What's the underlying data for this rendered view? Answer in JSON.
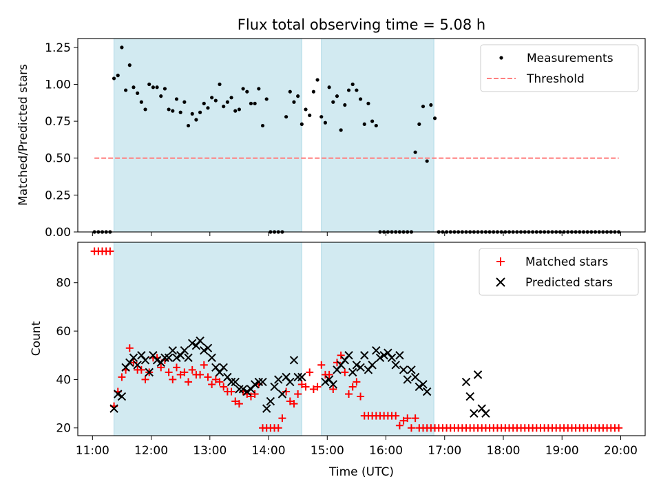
{
  "figure": {
    "title": "Flux total observing time = 5.08 h"
  },
  "chart_data": [
    {
      "type": "scatter",
      "ylabel": "Matched/Predicted stars",
      "xlabel": "",
      "xlim": [
        "10:45",
        "20:25"
      ],
      "ylim": [
        0,
        1.31
      ],
      "yticks": [
        "0.00",
        "0.25",
        "0.50",
        "0.75",
        "1.00",
        "1.25"
      ],
      "ytick_values": [
        0,
        0.25,
        0.5,
        0.75,
        1.0,
        1.25
      ],
      "shaded_intervals": [
        [
          "11:22",
          "14:34"
        ],
        [
          "14:54",
          "16:49"
        ]
      ],
      "shade_color": "#add8e6",
      "legend": {
        "position": "top-right",
        "entries": [
          "Measurements",
          "Threshold"
        ]
      },
      "series": [
        {
          "name": "Measurements",
          "kind": "points",
          "color": "#000000",
          "x": [
            "11:02",
            "11:06",
            "11:10",
            "11:14",
            "11:18",
            "11:22",
            "11:26",
            "11:30",
            "11:34",
            "11:38",
            "11:42",
            "11:46",
            "11:50",
            "11:54",
            "11:58",
            "12:02",
            "12:06",
            "12:10",
            "12:14",
            "12:18",
            "12:22",
            "12:26",
            "12:30",
            "12:34",
            "12:38",
            "12:42",
            "12:46",
            "12:50",
            "12:54",
            "12:58",
            "13:02",
            "13:06",
            "13:10",
            "13:14",
            "13:18",
            "13:22",
            "13:26",
            "13:30",
            "13:34",
            "13:38",
            "13:42",
            "13:46",
            "13:50",
            "13:54",
            "13:58",
            "14:02",
            "14:06",
            "14:10",
            "14:14",
            "14:18",
            "14:22",
            "14:26",
            "14:30",
            "14:34",
            "14:38",
            "14:42",
            "14:46",
            "14:50",
            "14:54",
            "14:58",
            "15:02",
            "15:06",
            "15:10",
            "15:14",
            "15:18",
            "15:22",
            "15:26",
            "15:30",
            "15:34",
            "15:38",
            "15:42",
            "15:46",
            "15:50",
            "15:54",
            "15:58",
            "16:02",
            "16:06",
            "16:10",
            "16:14",
            "16:18",
            "16:22",
            "16:26",
            "16:30",
            "16:34",
            "16:38",
            "16:42",
            "16:46",
            "16:50",
            "16:54",
            "16:58",
            "17:02",
            "17:06",
            "17:10",
            "17:14",
            "17:18",
            "17:22",
            "17:26",
            "17:30",
            "17:34",
            "17:38",
            "17:42",
            "17:46",
            "17:50",
            "17:54",
            "17:58",
            "18:02",
            "18:06",
            "18:10",
            "18:14",
            "18:18",
            "18:22",
            "18:26",
            "18:30",
            "18:34",
            "18:38",
            "18:42",
            "18:46",
            "18:50",
            "18:54",
            "18:58",
            "19:02",
            "19:06",
            "19:10",
            "19:14",
            "19:18",
            "19:22",
            "19:26",
            "19:30",
            "19:34",
            "19:38",
            "19:42",
            "19:46",
            "19:50",
            "19:54",
            "19:58"
          ],
          "y": [
            0,
            0,
            0,
            0,
            0,
            1.04,
            1.06,
            1.25,
            0.96,
            1.13,
            0.98,
            0.94,
            0.88,
            0.83,
            1.0,
            0.98,
            0.98,
            0.92,
            0.97,
            0.83,
            0.82,
            0.9,
            0.81,
            0.88,
            0.72,
            0.8,
            0.76,
            0.81,
            0.87,
            0.84,
            0.91,
            0.89,
            1.0,
            0.85,
            0.88,
            0.91,
            0.82,
            0.83,
            0.97,
            0.95,
            0.87,
            0.87,
            0.97,
            0.72,
            0.9,
            0,
            0,
            0,
            0,
            0.78,
            0.95,
            0.88,
            0.92,
            0.73,
            0.83,
            0.79,
            0.95,
            1.03,
            0.78,
            0.74,
            0.98,
            0.88,
            0.92,
            0.69,
            0.86,
            0.96,
            1.0,
            0.96,
            0.9,
            0.73,
            0.87,
            0.75,
            0.72,
            0,
            0,
            0,
            0,
            0,
            0,
            0,
            0,
            0,
            0.54,
            0.73,
            0.85,
            0.48,
            0.86,
            0.77,
            0,
            0,
            0,
            0,
            0,
            0,
            0,
            0,
            0,
            0,
            0,
            0,
            0,
            0,
            0,
            0,
            0,
            0,
            0,
            0,
            0,
            0,
            0,
            0,
            0,
            0,
            0,
            0,
            0,
            0,
            0,
            0,
            0,
            0,
            0,
            0,
            0,
            0,
            0,
            0,
            0,
            0,
            0,
            0,
            0,
            0,
            0
          ]
        },
        {
          "name": "Threshold",
          "kind": "dashed-line",
          "color": "#ff7f7f",
          "x": [
            "11:02",
            "19:58"
          ],
          "y": [
            0.5,
            0.5
          ]
        }
      ]
    },
    {
      "type": "scatter",
      "ylabel": "Count",
      "xlabel": "Time (UTC)",
      "xlim": [
        "10:45",
        "20:25"
      ],
      "ylim": [
        16.8,
        96.7
      ],
      "yticks": [
        "20",
        "40",
        "60",
        "80"
      ],
      "ytick_values": [
        20,
        40,
        60,
        80
      ],
      "xticks": [
        "11:00",
        "12:00",
        "13:00",
        "14:00",
        "15:00",
        "16:00",
        "17:00",
        "18:00",
        "19:00",
        "20:00"
      ],
      "shaded_intervals": [
        [
          "11:22",
          "14:34"
        ],
        [
          "14:54",
          "16:49"
        ]
      ],
      "shade_color": "#add8e6",
      "legend": {
        "position": "top-right",
        "entries": [
          "Matched stars",
          "Predicted stars"
        ]
      },
      "series": [
        {
          "name": "Matched stars",
          "marker": "plus",
          "color": "#ff0000",
          "x": [
            "11:02",
            "11:06",
            "11:10",
            "11:14",
            "11:18",
            "11:22",
            "11:26",
            "11:30",
            "11:34",
            "11:38",
            "11:42",
            "11:46",
            "11:50",
            "11:54",
            "11:58",
            "12:02",
            "12:06",
            "12:10",
            "12:14",
            "12:18",
            "12:22",
            "12:26",
            "12:30",
            "12:34",
            "12:38",
            "12:42",
            "12:46",
            "12:50",
            "12:54",
            "12:58",
            "13:02",
            "13:06",
            "13:10",
            "13:14",
            "13:18",
            "13:22",
            "13:26",
            "13:30",
            "13:34",
            "13:38",
            "13:42",
            "13:46",
            "13:50",
            "13:54",
            "13:58",
            "14:02",
            "14:06",
            "14:10",
            "14:14",
            "14:18",
            "14:22",
            "14:26",
            "14:30",
            "14:34",
            "14:38",
            "14:42",
            "14:46",
            "14:50",
            "14:54",
            "14:58",
            "15:02",
            "15:06",
            "15:10",
            "15:14",
            "15:18",
            "15:22",
            "15:26",
            "15:30",
            "15:34",
            "15:38",
            "15:42",
            "15:46",
            "15:50",
            "15:54",
            "15:58",
            "16:02",
            "16:06",
            "16:10",
            "16:14",
            "16:18",
            "16:22",
            "16:26",
            "16:30",
            "16:34",
            "16:38",
            "16:42",
            "16:46",
            "16:50",
            "16:54",
            "16:58",
            "17:02",
            "17:06",
            "17:10",
            "17:14",
            "17:18",
            "17:22",
            "17:26",
            "17:30",
            "17:34",
            "17:38",
            "17:42",
            "17:46",
            "17:50",
            "17:54",
            "17:58",
            "18:02",
            "18:06",
            "18:10",
            "18:14",
            "18:18",
            "18:22",
            "18:26",
            "18:30",
            "18:34",
            "18:38",
            "18:42",
            "18:46",
            "18:50",
            "18:54",
            "18:58",
            "19:02",
            "19:06",
            "19:10",
            "19:14",
            "19:18",
            "19:22",
            "19:26",
            "19:30",
            "19:34",
            "19:38",
            "19:42",
            "19:46",
            "19:50",
            "19:54",
            "19:58"
          ],
          "y": [
            93,
            93,
            93,
            93,
            93,
            29,
            35,
            41,
            44,
            53,
            47,
            44,
            44,
            40,
            43,
            49,
            49,
            45,
            48,
            43,
            40,
            45,
            42,
            43,
            39,
            44,
            42,
            42,
            46,
            41,
            38,
            40,
            39,
            37,
            35,
            35,
            31,
            30,
            35,
            34,
            33,
            34,
            38,
            20,
            20,
            20,
            20,
            20,
            24,
            35,
            31,
            30,
            34,
            38,
            37,
            43,
            36,
            37,
            46,
            42,
            42,
            36,
            47,
            50,
            43,
            34,
            37,
            39,
            33,
            25,
            25,
            25,
            25,
            25,
            25,
            25,
            25,
            25,
            21,
            23,
            24,
            20,
            24,
            20,
            20,
            20,
            20,
            20,
            20,
            20,
            20,
            20,
            20,
            20,
            20,
            20,
            20,
            20,
            20,
            20,
            20,
            20,
            20,
            20,
            20,
            20,
            20,
            20,
            20,
            20,
            20,
            20,
            20,
            20,
            20,
            20,
            20,
            20,
            20,
            20,
            20,
            20,
            20,
            20,
            20,
            20,
            20,
            20,
            20,
            20,
            20,
            20,
            20,
            20,
            20
          ]
        },
        {
          "name": "Predicted stars",
          "marker": "x",
          "color": "#000000",
          "x": [
            "11:22",
            "11:26",
            "11:30",
            "11:34",
            "11:38",
            "11:42",
            "11:46",
            "11:50",
            "11:54",
            "11:58",
            "12:02",
            "12:06",
            "12:10",
            "12:14",
            "12:18",
            "12:22",
            "12:26",
            "12:30",
            "12:34",
            "12:38",
            "12:42",
            "12:46",
            "12:50",
            "12:54",
            "12:58",
            "13:02",
            "13:06",
            "13:10",
            "13:14",
            "13:18",
            "13:22",
            "13:26",
            "13:30",
            "13:34",
            "13:38",
            "13:42",
            "13:46",
            "13:50",
            "13:54",
            "13:58",
            "14:02",
            "14:06",
            "14:10",
            "14:14",
            "14:18",
            "14:22",
            "14:26",
            "14:30",
            "14:34",
            "14:58",
            "15:02",
            "15:06",
            "15:10",
            "15:14",
            "15:18",
            "15:22",
            "15:26",
            "15:30",
            "15:34",
            "15:38",
            "15:42",
            "15:46",
            "15:50",
            "15:54",
            "15:58",
            "16:02",
            "16:06",
            "16:10",
            "16:14",
            "16:18",
            "16:22",
            "16:26",
            "16:30",
            "16:34",
            "16:38",
            "16:42",
            "17:22",
            "17:26",
            "17:30",
            "17:34",
            "17:38",
            "17:42"
          ],
          "y": [
            28,
            34,
            33,
            45,
            47,
            49,
            46,
            50,
            48,
            43,
            50,
            48,
            47,
            49,
            49,
            52,
            49,
            50,
            52,
            49,
            55,
            54,
            56,
            52,
            53,
            49,
            45,
            43,
            45,
            41,
            39,
            39,
            36,
            36,
            35,
            36,
            38,
            39,
            39,
            28,
            31,
            37,
            40,
            34,
            41,
            39,
            48,
            41,
            41,
            39,
            40,
            38,
            44,
            46,
            48,
            50,
            43,
            46,
            45,
            50,
            44,
            46,
            52,
            49,
            50,
            51,
            49,
            46,
            50,
            44,
            40,
            44,
            41,
            37,
            38,
            35,
            39,
            33,
            26,
            42,
            28,
            26
          ]
        }
      ]
    }
  ]
}
